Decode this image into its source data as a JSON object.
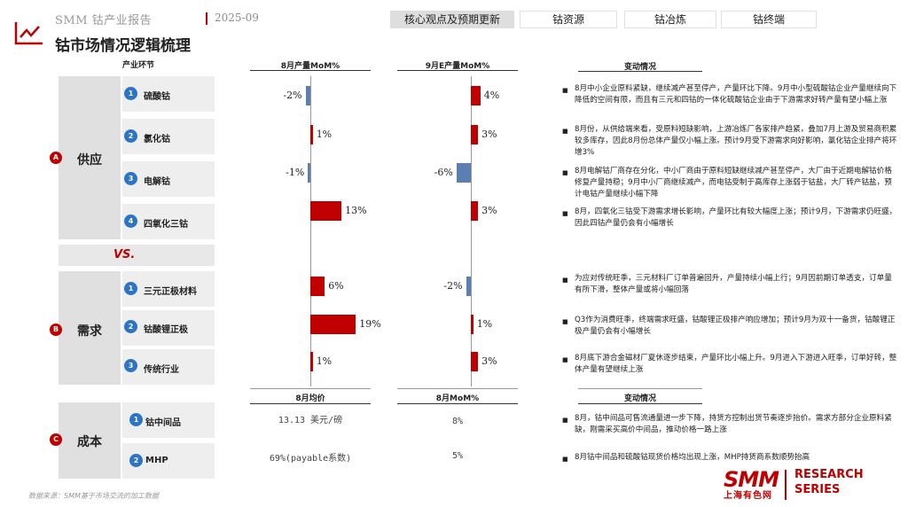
{
  "brand": "SMM 钴产业报告",
  "date": "2025-09",
  "title": "钴市场情况逻辑梳理",
  "tabs": [
    {
      "label": "核心观点及预期更新",
      "active": true
    },
    {
      "label": "钴资源",
      "active": false
    },
    {
      "label": "钴冶炼",
      "active": false
    },
    {
      "label": "钴终端",
      "active": false
    }
  ],
  "columns": {
    "industry": "产业环节",
    "aug_output": "8月产量MoM%",
    "sep_output": "9月E产量MoM%",
    "change": "变动情况",
    "aug_avg_price": "8月均价",
    "aug_price_mom": "8月MoM%",
    "change2": "变动情况"
  },
  "supply": {
    "letter": "A",
    "label": "供应",
    "items": [
      {
        "num": "1",
        "label": "硫酸钴"
      },
      {
        "num": "2",
        "label": "氯化钴"
      },
      {
        "num": "3",
        "label": "电解钴"
      },
      {
        "num": "4",
        "label": "四氧化三钴"
      }
    ]
  },
  "vs": "VS.",
  "demand": {
    "letter": "B",
    "label": "需求",
    "items": [
      {
        "num": "1",
        "label": "三元正极材料"
      },
      {
        "num": "2",
        "label": "钴酸锂正极"
      },
      {
        "num": "3",
        "label": "传统行业"
      }
    ]
  },
  "cost": {
    "letter": "C",
    "label": "成本",
    "items": [
      {
        "num": "1",
        "label": "钴中间品"
      },
      {
        "num": "2",
        "label": "MHP"
      }
    ]
  },
  "aug_mom": {
    "labels": [
      "-2%",
      "1%",
      "-1%",
      "13%",
      "6%",
      "19%",
      "1%"
    ],
    "values": [
      -2,
      1,
      -1,
      13,
      6,
      19,
      1
    ]
  },
  "sep_mom": {
    "labels": [
      "4%",
      "3%",
      "-6%",
      "3%",
      "-2%",
      "1%",
      "3%"
    ],
    "values": [
      4,
      3,
      -6,
      3,
      -2,
      1,
      3
    ]
  },
  "notes": [
    "8月中小企业原料紧缺，继续减产甚至停产，产量环比下降。9月中小型硫酸钴企业产量继续向下降低的空间有限，而且有三元和四钴的一体化硫酸钴企业由于下游需求好转产量有望小幅上涨",
    "8月份，从供给端来看，受原料短缺影响，上游冶炼厂各家排产趋紧，叠加7月上游及贸易商积累较多库存，因此8月份总体产量仅小幅上涨。预计9月受下游需求向好影响，氯化钴企业排产将环增3%",
    "8月电解钴厂商存在分化，中小厂商由于原料短缺继续减产甚至停产，大厂由于近期电解钴价格修复产量持稳；9月中小厂商继续减产，而电钴受制于高库存上涨弱于钴盐，大厂转产钴盐，预计电钴产量继续小幅下降",
    "8月，四氧化三钴受下游需求增长影响，产量环比有较大幅度上涨；预计9月，下游需求仍旺盛，因此四钴产量仍会有小幅增长",
    "为应对传统旺季，三元材料厂订单普遍回升，产量持续小幅上行；9月因前期订单透支，订单量有所下滑，整体产量或将小幅回落",
    "Q3作为消费旺季，终端需求旺盛，钴酸锂正极排产响应增加；预计9月为双十一备货，钴酸锂正极产量仍会有小幅增长",
    "8月底下游合金磁材厂夏休逐步结束，产量环比小幅上升。9月进入下游进入旺季，订单好转，整体产量有望继续上涨"
  ],
  "cost_rows": [
    {
      "price": "13.13 美元/磅",
      "mom": "8%",
      "note": "8月，钴中间品可售流通量进一步下降，持货方控制出货节奏逐步抬价。需求方部分企业原料紧缺，刚需采买高价中间品，推动价格一路上涨"
    },
    {
      "price": "69%(payable系数)",
      "mom": "5%",
      "note": "8月钴中间品和硫酸钴现货价格均出现上涨，MHP持货商系数顺势抬高"
    }
  ],
  "source": "数据来源：SMM基于市场交流的加工数据",
  "footer_logo": {
    "smm": "SMM",
    "cn": "上海有色网",
    "research": "RESEARCH",
    "series": "SERIES"
  },
  "colors": {
    "accent": "#c00000",
    "negative": "#5b7fb2",
    "badge": "#2e74c4"
  }
}
